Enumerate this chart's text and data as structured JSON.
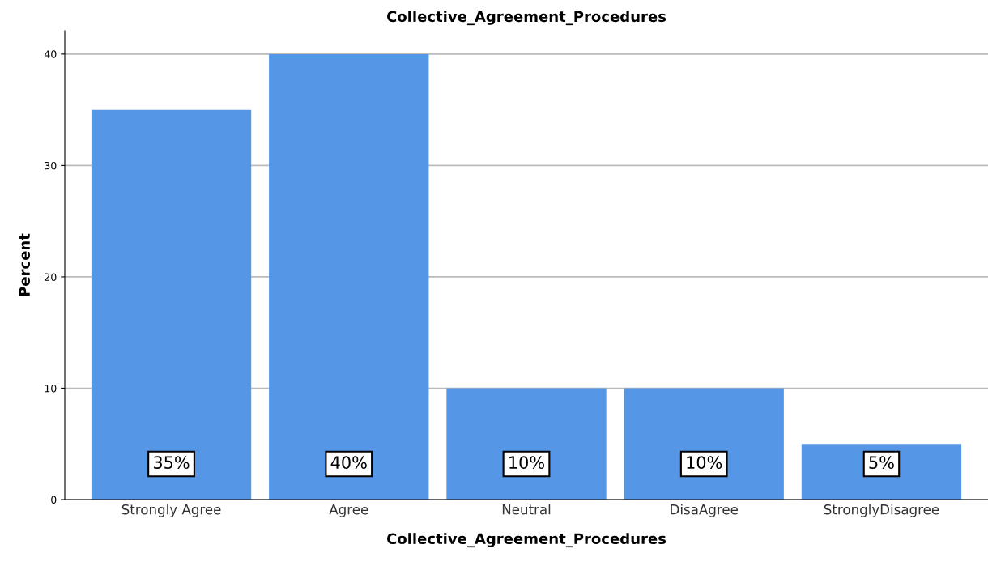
{
  "chart_data": {
    "type": "bar",
    "title": "Collective_Agreement_Procedures",
    "xlabel": "Collective_Agreement_Procedures",
    "ylabel": "Percent",
    "categories": [
      "Strongly Agree",
      "Agree",
      "Neutral",
      "DisaAgree",
      "StronglyDisagree"
    ],
    "values": [
      35,
      40,
      10,
      10,
      5
    ],
    "value_labels": [
      "35%",
      "40%",
      "10%",
      "10%",
      "5%"
    ],
    "color": "#5596e6",
    "ylim": [
      0,
      42.1
    ],
    "yticks": [
      0,
      10,
      20,
      30,
      40
    ],
    "grid": "y"
  }
}
